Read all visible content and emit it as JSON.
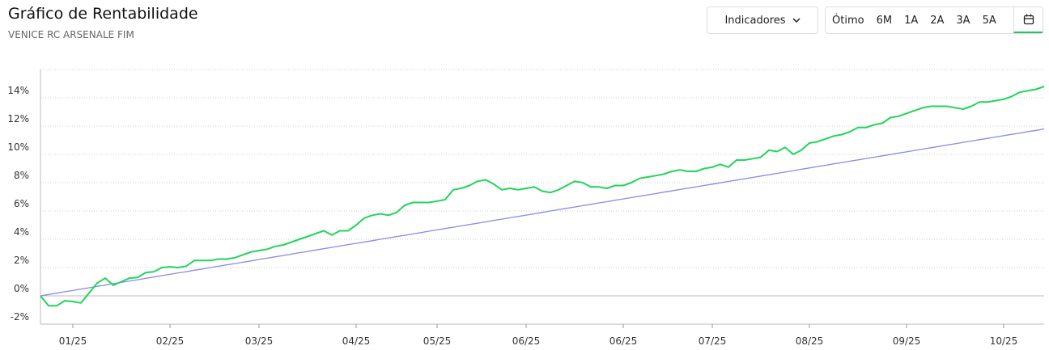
{
  "chart_data": {
    "type": "line",
    "title": "Gráfico de Rentabilidade",
    "subtitle": "VENICE RC ARSENALE FIM",
    "categories": [
      null,
      null,
      null,
      null,
      "01/25",
      null,
      null,
      null,
      null,
      null,
      null,
      null,
      null,
      null,
      null,
      null,
      "02/25",
      null,
      null,
      null,
      null,
      null,
      null,
      null,
      null,
      null,
      null,
      "03/25",
      null,
      null,
      null,
      null,
      null,
      null,
      null,
      null,
      null,
      null,
      null,
      "04/25",
      null,
      null,
      null,
      null,
      null,
      null,
      null,
      null,
      null,
      "05/25",
      null,
      null,
      null,
      null,
      null,
      null,
      null,
      null,
      null,
      null,
      "06/25",
      null,
      null,
      null,
      null,
      null,
      null,
      null,
      null,
      null,
      null,
      null,
      "06/25",
      null,
      null,
      null,
      null,
      null,
      null,
      null,
      null,
      null,
      null,
      "07/25",
      null,
      null,
      null,
      null,
      null,
      null,
      null,
      null,
      null,
      null,
      null,
      "08/25",
      null,
      null,
      null,
      null,
      null,
      null,
      null,
      null,
      null,
      null,
      null,
      "09/25",
      null,
      null,
      null,
      null,
      null,
      null,
      null,
      null,
      null,
      null,
      null,
      "10/25",
      null,
      null,
      null,
      null,
      null
    ],
    "series": [
      {
        "color": "#22d45a",
        "values": [
          0,
          -0.7,
          -0.7,
          -0.35,
          -0.4,
          -0.5,
          0.2,
          0.9,
          1.25,
          0.75,
          1.0,
          1.25,
          1.3,
          1.65,
          1.7,
          2.0,
          2.05,
          2.0,
          2.1,
          2.5,
          2.5,
          2.5,
          2.6,
          2.6,
          2.7,
          2.9,
          3.1,
          3.2,
          3.3,
          3.5,
          3.6,
          3.8,
          4.0,
          4.2,
          4.4,
          4.6,
          4.3,
          4.6,
          4.6,
          5.0,
          5.5,
          5.7,
          5.8,
          5.7,
          5.9,
          6.4,
          6.6,
          6.6,
          6.6,
          6.7,
          6.8,
          7.5,
          7.6,
          7.8,
          8.1,
          8.2,
          7.9,
          7.5,
          7.6,
          7.5,
          7.6,
          7.7,
          7.4,
          7.3,
          7.5,
          7.8,
          8.1,
          8.0,
          7.7,
          7.7,
          7.6,
          7.8,
          7.8,
          8.0,
          8.3,
          8.4,
          8.5,
          8.6,
          8.8,
          8.9,
          8.8,
          8.8,
          9.0,
          9.1,
          9.3,
          9.1,
          9.6,
          9.6,
          9.7,
          9.8,
          10.3,
          10.2,
          10.5,
          10.0,
          10.3,
          10.8,
          10.9,
          11.1,
          11.3,
          11.4,
          11.6,
          11.9,
          11.9,
          12.1,
          12.2,
          12.6,
          12.7,
          12.9,
          13.1,
          13.3,
          13.4,
          13.4,
          13.4,
          13.3,
          13.2,
          13.4,
          13.7,
          13.7,
          13.8,
          13.9,
          14.1,
          14.4,
          14.5,
          14.6,
          14.8
        ]
      },
      {
        "color": "#8b8be6",
        "values": [
          0,
          0.1,
          0.19,
          0.29,
          0.38,
          0.48,
          0.57,
          0.67,
          0.76,
          0.86,
          0.95,
          1.05,
          1.14,
          1.24,
          1.33,
          1.43,
          1.52,
          1.62,
          1.71,
          1.81,
          1.9,
          2.0,
          2.09,
          2.19,
          2.28,
          2.38,
          2.47,
          2.57,
          2.66,
          2.76,
          2.85,
          2.95,
          3.05,
          3.14,
          3.24,
          3.33,
          3.43,
          3.52,
          3.62,
          3.71,
          3.81,
          3.9,
          4.0,
          4.09,
          4.19,
          4.28,
          4.38,
          4.47,
          4.57,
          4.66,
          4.76,
          4.85,
          4.95,
          5.04,
          5.14,
          5.23,
          5.33,
          5.42,
          5.52,
          5.61,
          5.71,
          5.8,
          5.9,
          6.0,
          6.09,
          6.19,
          6.28,
          6.38,
          6.47,
          6.57,
          6.66,
          6.76,
          6.85,
          6.95,
          7.04,
          7.14,
          7.23,
          7.33,
          7.42,
          7.52,
          7.61,
          7.71,
          7.8,
          7.9,
          7.99,
          8.09,
          8.18,
          8.28,
          8.37,
          8.47,
          8.56,
          8.66,
          8.75,
          8.85,
          8.95,
          9.04,
          9.14,
          9.23,
          9.33,
          9.42,
          9.52,
          9.61,
          9.71,
          9.8,
          9.9,
          9.99,
          10.09,
          10.18,
          10.28,
          10.37,
          10.47,
          10.56,
          10.66,
          10.75,
          10.85,
          10.94,
          11.04,
          11.13,
          11.23,
          11.32,
          11.42,
          11.51,
          11.61,
          11.7,
          11.8
        ]
      }
    ],
    "ylim": [
      -2,
      16
    ],
    "yticks": [
      {
        "value": -2,
        "label": "-2%"
      },
      {
        "value": 0,
        "label": "0%"
      },
      {
        "value": 2,
        "label": "2%"
      },
      {
        "value": 4,
        "label": "4%"
      },
      {
        "value": 6,
        "label": "6%"
      },
      {
        "value": 8,
        "label": "8%"
      },
      {
        "value": 10,
        "label": "10%"
      },
      {
        "value": 12,
        "label": "12%"
      },
      {
        "value": 14,
        "label": "14%"
      }
    ],
    "grid": true
  },
  "toolbar": {
    "indicators": "Indicadores",
    "periods": [
      "Ótimo",
      "6M",
      "1A",
      "2A",
      "3A",
      "5A"
    ]
  }
}
